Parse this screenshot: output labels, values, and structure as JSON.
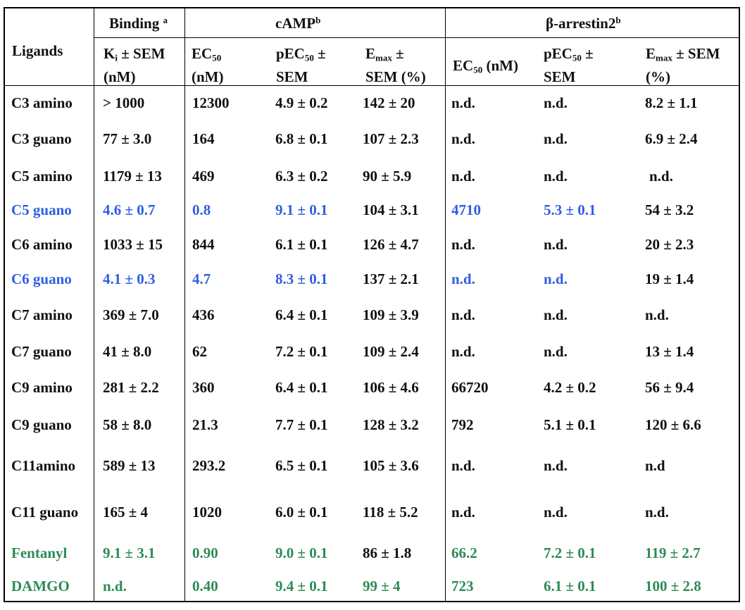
{
  "header": {
    "ligands": "Ligands",
    "binding": {
      "text": "Binding",
      "sup": "a"
    },
    "camp": {
      "text": "cAMP",
      "sup": "b"
    },
    "barr": {
      "text": "β-arrestin2",
      "sup": "b"
    },
    "ki_line1_a": "K",
    "ki_line1_sub": "i",
    "ki_line1_b": " ± SEM",
    "ki_line2": "(nM)",
    "ec50_line1_a": "EC",
    "ec50_line1_sub": "50",
    "ec50_line2": "(nM)",
    "pec50_line1_a": "pEC",
    "pec50_line1_sub": "50",
    "pec50_line1_b": " ±",
    "pec50_line2": "SEM",
    "emax_line1_a": "E",
    "emax_line1_sub": "max",
    "emax_line1_b": " ±",
    "emax_line2": "SEM (%)",
    "b_ec50_a": "EC",
    "b_ec50_sub": "50",
    "b_ec50_b": " (nM)",
    "b_pec50_line1_a": "pEC",
    "b_pec50_line1_sub": "50",
    "b_pec50_line1_b": " ±",
    "b_pec50_line2": "SEM",
    "b_emax_line1_a": "E",
    "b_emax_line1_sub": "max",
    "b_emax_line1_b": " ± SEM",
    "b_emax_line2": "(%)"
  },
  "colors": {
    "blue": "#2f5fe0",
    "green": "#2e8b55",
    "black": "#111111"
  },
  "rows": [
    {
      "ligand": "C3 amino",
      "ki": "> 1000",
      "ec50": "12300",
      "pec50": "4.9 ± 0.2",
      "emax": "142 ± 20",
      "b_ec50": "n.d.",
      "b_pec50": "n.d.",
      "b_emax": "8.2 ± 1.1"
    },
    {
      "ligand": "C3 guano",
      "ki": "77 ± 3.0",
      "ec50": "164",
      "pec50": "6.8 ± 0.1",
      "emax": "107 ± 2.3",
      "b_ec50": "n.d.",
      "b_pec50": "n.d.",
      "b_emax": "6.9 ± 2.4"
    },
    {
      "ligand": "C5 amino",
      "ki": "1179 ± 13",
      "ec50": "469",
      "pec50": "6.3 ± 0.2",
      "emax": "90 ± 5.9",
      "b_ec50": "n.d.",
      "b_pec50": "n.d.",
      "b_emax": "n.d."
    },
    {
      "ligand": "C5 guano",
      "ki": "4.6 ± 0.7",
      "ec50": "0.8",
      "pec50": "9.1 ± 0.1",
      "emax": "104 ± 3.1",
      "b_ec50": "4710",
      "b_pec50": "5.3 ± 0.1",
      "b_emax": "54 ± 3.2"
    },
    {
      "ligand": "C6 amino",
      "ki": "1033 ± 15",
      "ec50": "844",
      "pec50": "6.1 ± 0.1",
      "emax": "126 ± 4.7",
      "b_ec50": "n.d.",
      "b_pec50": "n.d.",
      "b_emax": "20 ± 2.3"
    },
    {
      "ligand": "C6 guano",
      "ki": "4.1 ± 0.3",
      "ec50": "4.7",
      "pec50": "8.3 ± 0.1",
      "emax": "137 ± 2.1",
      "b_ec50": "n.d.",
      "b_pec50": "n.d.",
      "b_emax": "19 ± 1.4"
    },
    {
      "ligand": "C7 amino",
      "ki": "369 ± 7.0",
      "ec50": "436",
      "pec50": "6.4 ± 0.1",
      "emax": "109 ± 3.9",
      "b_ec50": "n.d.",
      "b_pec50": "n.d.",
      "b_emax": "n.d."
    },
    {
      "ligand": "C7 guano",
      "ki": "41 ± 8.0",
      "ec50": "62",
      "pec50": "7.2 ± 0.1",
      "emax": "109 ± 2.4",
      "b_ec50": "n.d.",
      "b_pec50": "n.d.",
      "b_emax": "13 ± 1.4"
    },
    {
      "ligand": "C9 amino",
      "ki": "281 ± 2.2",
      "ec50": "360",
      "pec50": "6.4 ± 0.1",
      "emax": "106 ± 4.6",
      "b_ec50": "66720",
      "b_pec50": "4.2 ± 0.2",
      "b_emax": "56 ± 9.4"
    },
    {
      "ligand": "C9 guano",
      "ki": "58 ± 8.0",
      "ec50": "21.3",
      "pec50": "7.7 ± 0.1",
      "emax": "128 ± 3.2",
      "b_ec50": "792",
      "b_pec50": "5.1 ± 0.1",
      "b_emax": "120 ± 6.6"
    },
    {
      "ligand": "C11amino",
      "ki": "589 ± 13",
      "ec50": "293.2",
      "pec50": "6.5 ± 0.1",
      "emax": "105 ± 3.6",
      "b_ec50": "n.d.",
      "b_pec50": "n.d.",
      "b_emax": "n.d"
    },
    {
      "ligand": "C11 guano",
      "ki": "165 ± 4",
      "ec50": "1020",
      "pec50": "6.0 ± 0.1",
      "emax": "118 ± 5.2",
      "b_ec50": "n.d.",
      "b_pec50": "n.d.",
      "b_emax": "n.d."
    },
    {
      "ligand": "Fentanyl",
      "ki": "9.1 ± 3.1",
      "ec50": "0.90",
      "pec50": "9.0 ± 0.1",
      "emax": "86 ± 1.8",
      "b_ec50": "66.2",
      "b_pec50": "7.2 ± 0.1",
      "b_emax": "119 ± 2.7"
    },
    {
      "ligand": "DAMGO",
      "ki": "n.d.",
      "ec50": "0.40",
      "pec50": "9.4 ± 0.1",
      "emax": "99 ± 4",
      "b_ec50": "723",
      "b_pec50": "6.1 ± 0.1",
      "b_emax": "100 ± 2.8"
    }
  ]
}
